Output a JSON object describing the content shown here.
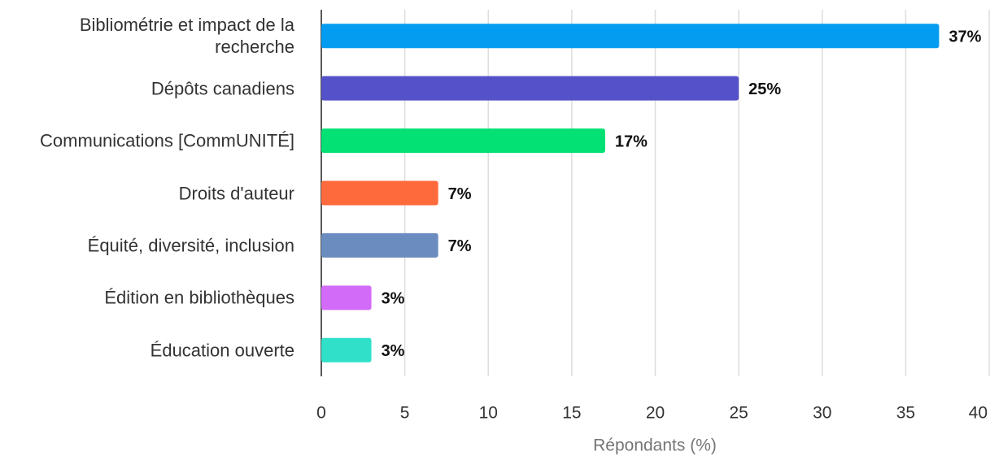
{
  "chart_data": {
    "type": "bar",
    "orientation": "horizontal",
    "categories": [
      "Bibliométrie et impact de la recherche",
      "Dépôts canadiens",
      "Communications [CommUNITÉ]",
      "Droits d'auteur",
      "Équité, diversité, inclusion",
      "Édition en bibliothèques",
      "Éducation ouverte"
    ],
    "values": [
      37,
      25,
      17,
      7,
      7,
      3,
      3
    ],
    "value_labels": [
      "37%",
      "25%",
      "17%",
      "7%",
      "7%",
      "3%",
      "3%"
    ],
    "colors": [
      "#039cf0",
      "#5551c8",
      "#03e074",
      "#ff6a3d",
      "#6b8cbf",
      "#d36bf9",
      "#30e0c8"
    ],
    "xlabel": "Répondants (%)",
    "xlim": [
      0,
      40
    ],
    "xticks": [
      0,
      5,
      10,
      15,
      20,
      25,
      30,
      35,
      40
    ],
    "grid": true
  }
}
